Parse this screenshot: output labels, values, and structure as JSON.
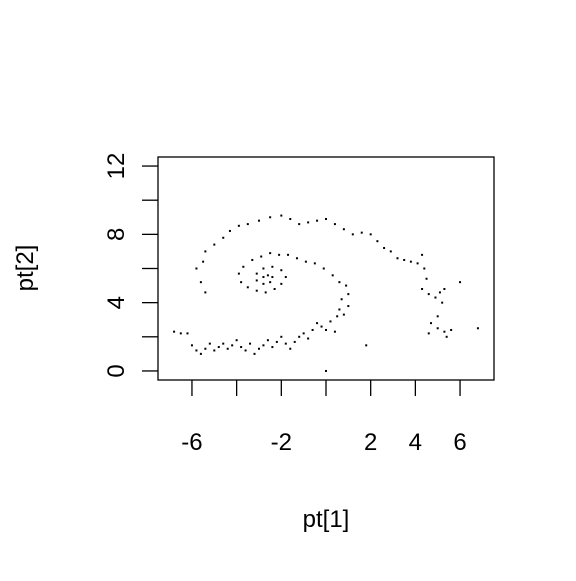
{
  "chart_data": {
    "type": "scatter",
    "xlabel": "pt[1]",
    "ylabel": "pt[2]",
    "color": "#000000",
    "xlim": [
      -7.52,
      7.52
    ],
    "ylim": [
      -0.53,
      12.53
    ],
    "xticks": [
      {
        "value": -6,
        "label": "-6"
      },
      {
        "value": -4,
        "label": null
      },
      {
        "value": -2,
        "label": "-2"
      },
      {
        "value": 0,
        "label": null
      },
      2,
      4,
      6
    ],
    "yticks": [
      0,
      {
        "value": 2,
        "label": null
      },
      4,
      {
        "value": 6,
        "label": null
      },
      8,
      {
        "value": 10,
        "label": null
      },
      12
    ],
    "x": [
      -6.8,
      -6.5,
      -6.2,
      -6.0,
      -5.8,
      -5.6,
      -5.4,
      -5.2,
      -5.0,
      -4.8,
      -4.6,
      -4.4,
      -4.2,
      -4.0,
      -3.8,
      -3.6,
      -3.4,
      -3.2,
      -3.0,
      -2.8,
      -2.6,
      -2.4,
      -2.2,
      -2.0,
      -1.8,
      -1.6,
      -1.4,
      -1.2,
      -1.0,
      -0.8,
      -0.6,
      -0.4,
      -0.2,
      0.0,
      0.2,
      0.4,
      0.5,
      0.6,
      0.8,
      1.0,
      0.7,
      1.0,
      0.9,
      0.6,
      0.3,
      -0.1,
      -0.5,
      -0.9,
      -1.3,
      -1.7,
      -2.1,
      -2.5,
      -2.9,
      -3.3,
      -3.7,
      -3.9,
      -3.8,
      -3.5,
      -3.1,
      -2.7,
      -2.3,
      -2.0,
      -1.8,
      -2.0,
      -2.4,
      -2.8,
      -3.1,
      -3.1,
      -2.8,
      -2.5,
      -2.4,
      -2.6,
      -2.8,
      -5.4,
      -5.6,
      -5.8,
      -5.5,
      -5.4,
      -5.0,
      -4.6,
      -4.3,
      -3.9,
      -3.5,
      -3.0,
      -2.5,
      -2.0,
      -1.6,
      -1.2,
      -0.8,
      -0.4,
      0.0,
      0.4,
      0.8,
      1.2,
      1.6,
      2.0,
      2.3,
      2.6,
      2.9,
      3.2,
      3.5,
      3.8,
      4.1,
      4.3,
      4.4,
      4.5,
      4.3,
      4.6,
      4.9,
      5.1,
      5.3,
      5.2,
      5.0,
      4.7,
      5.0,
      5.3,
      4.6,
      5.4,
      5.6,
      6.0,
      6.8,
      1.8,
      0.0
    ],
    "y": [
      2.3,
      2.2,
      2.2,
      1.5,
      1.2,
      1.0,
      1.3,
      1.6,
      1.2,
      1.4,
      1.6,
      1.3,
      1.5,
      1.8,
      1.4,
      1.2,
      1.6,
      1.0,
      1.3,
      1.5,
      1.8,
      1.4,
      1.7,
      2.0,
      1.6,
      1.3,
      1.7,
      2.0,
      2.2,
      1.9,
      2.4,
      2.8,
      2.6,
      2.4,
      2.9,
      2.3,
      3.2,
      3.6,
      3.3,
      3.8,
      4.2,
      4.5,
      5.0,
      5.2,
      5.6,
      6.0,
      6.3,
      6.4,
      6.6,
      6.8,
      6.8,
      6.9,
      6.7,
      6.5,
      6.1,
      5.7,
      5.2,
      4.9,
      4.7,
      4.6,
      4.8,
      5.1,
      5.5,
      5.9,
      6.1,
      6.0,
      5.7,
      5.3,
      5.1,
      5.2,
      5.5,
      5.6,
      5.5,
      4.6,
      5.2,
      6.0,
      6.4,
      7.0,
      7.4,
      7.8,
      8.2,
      8.5,
      8.6,
      8.8,
      9.0,
      9.1,
      8.9,
      8.6,
      8.7,
      8.8,
      8.9,
      8.6,
      8.3,
      8.0,
      8.1,
      8.0,
      7.6,
      7.2,
      7.0,
      6.6,
      6.5,
      6.4,
      6.3,
      6.8,
      6.0,
      5.4,
      4.8,
      4.5,
      4.3,
      4.6,
      4.8,
      4.0,
      3.2,
      2.8,
      2.5,
      2.3,
      2.2,
      2.0,
      2.4,
      5.2,
      2.5,
      1.5,
      0.0
    ]
  }
}
